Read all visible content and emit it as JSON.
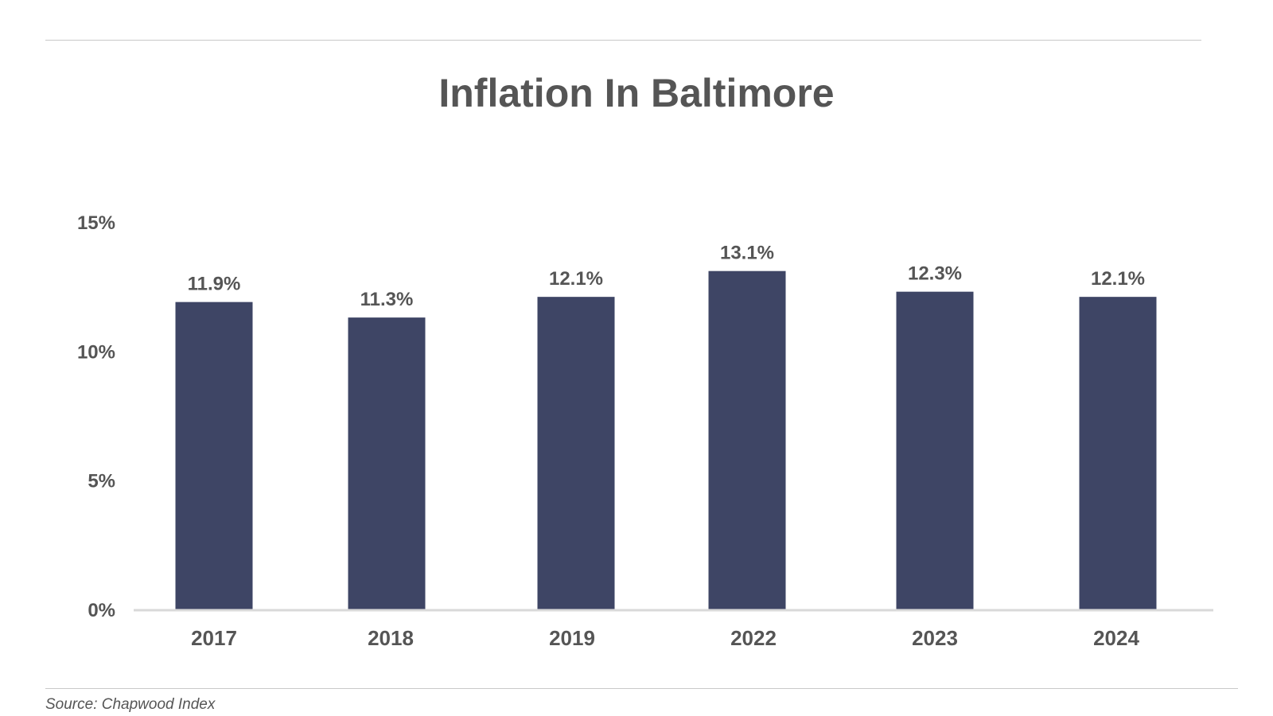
{
  "title": "Inflation In Baltimore",
  "source": "Source: Chapwood Index",
  "colors": {
    "bar": "#3e4565",
    "text": "#555555",
    "axis": "#d9d9d9"
  },
  "chart_data": {
    "type": "bar",
    "title": "Inflation In Baltimore",
    "xlabel": "",
    "ylabel": "",
    "categories": [
      "2017",
      "2018",
      "2019",
      "2022",
      "2023",
      "2024"
    ],
    "values": [
      11.9,
      11.3,
      12.1,
      13.1,
      12.3,
      12.1
    ],
    "value_labels": [
      "11.9%",
      "11.3%",
      "12.1%",
      "13.1%",
      "12.3%",
      "12.1%"
    ],
    "ylim": [
      0,
      15
    ],
    "yticks": [
      0,
      5,
      10,
      15
    ],
    "ytick_labels": [
      "0%",
      "5%",
      "10%",
      "15%"
    ],
    "grid": false,
    "legend": "none"
  }
}
